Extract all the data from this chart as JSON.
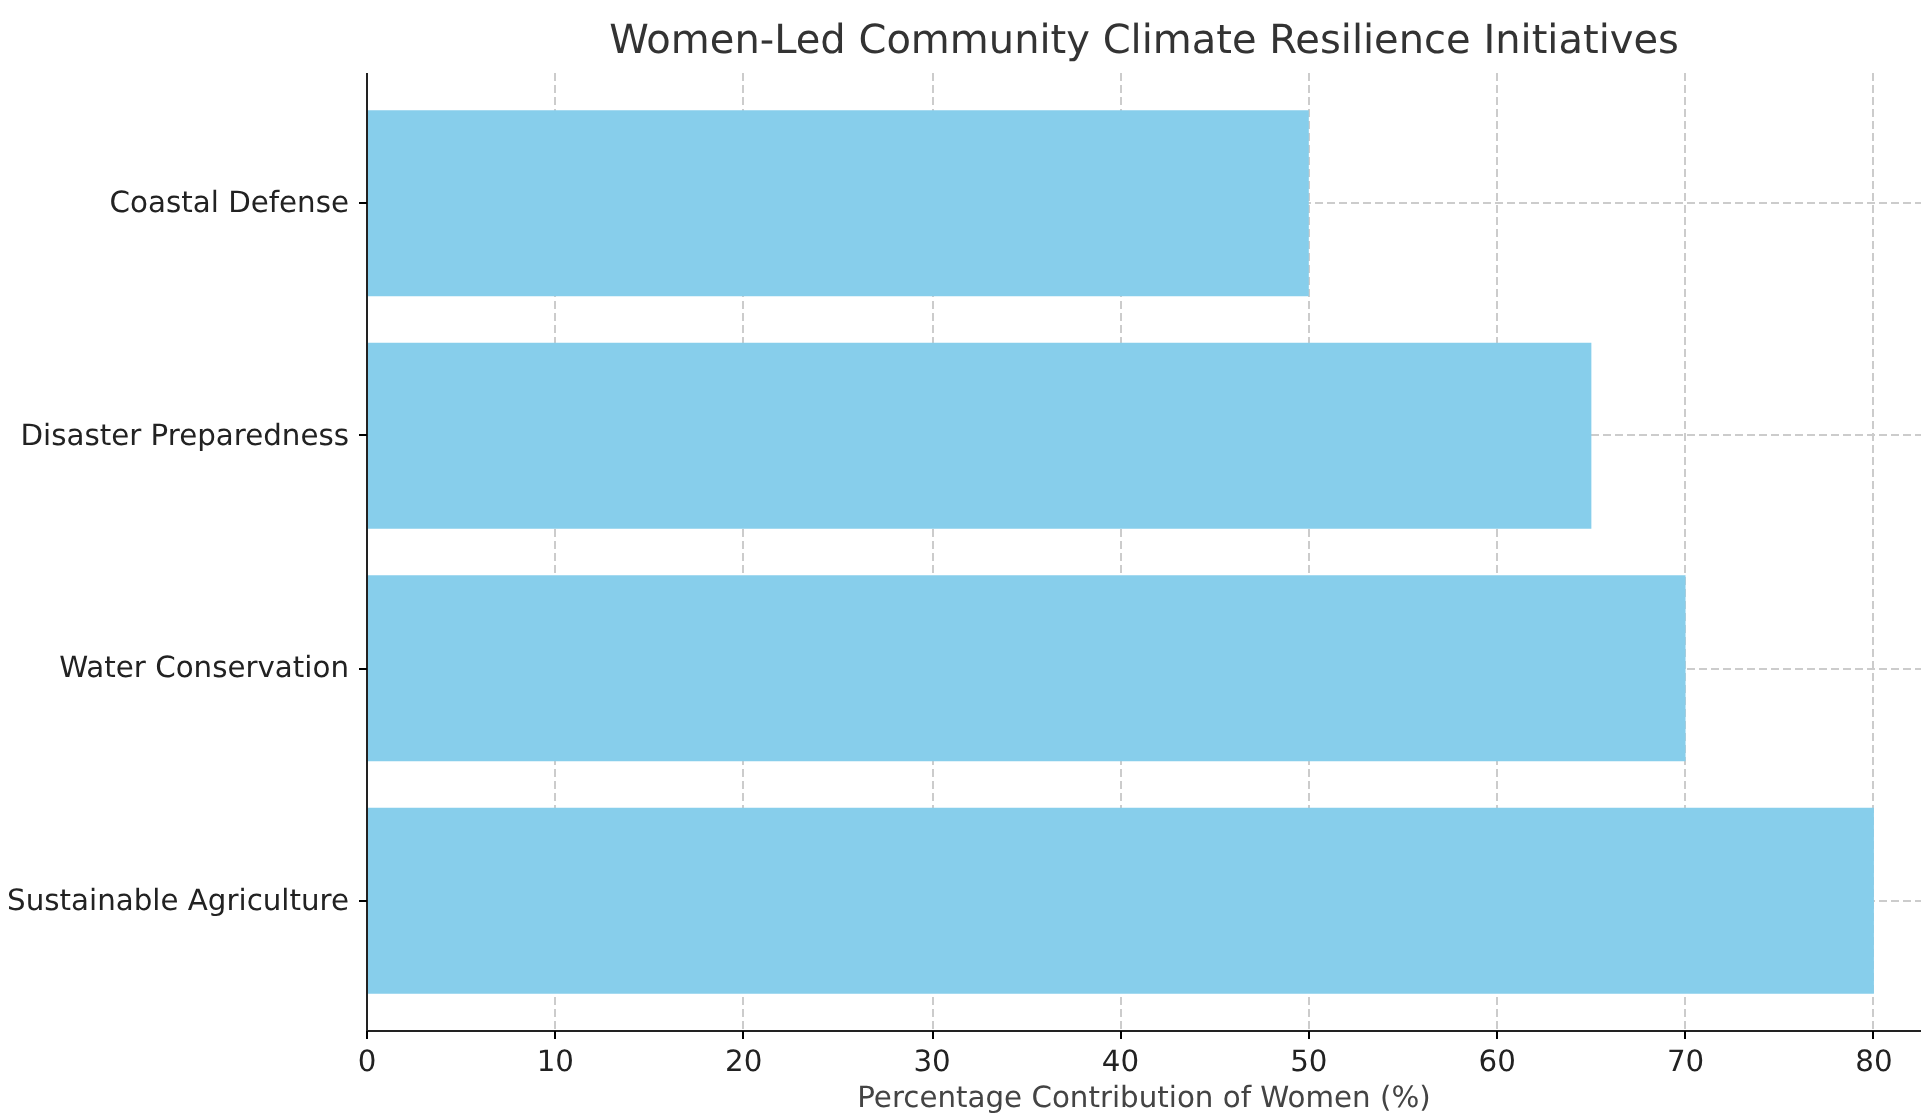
{
  "chart_data": {
    "type": "bar",
    "orientation": "horizontal",
    "title": "Women-Led Community Climate Resilience Initiatives",
    "xlabel": "Percentage Contribution of Women (%)",
    "categories": [
      "Coastal Defense",
      "Disaster Preparedness",
      "Water Conservation",
      "Sustainable Agriculture"
    ],
    "values": [
      50,
      65,
      70,
      80
    ],
    "color": "#87ceeb",
    "xlim": [
      0,
      82.5
    ],
    "xticks": [
      0,
      10,
      20,
      30,
      40,
      50,
      60,
      70,
      80
    ],
    "grid": true
  }
}
